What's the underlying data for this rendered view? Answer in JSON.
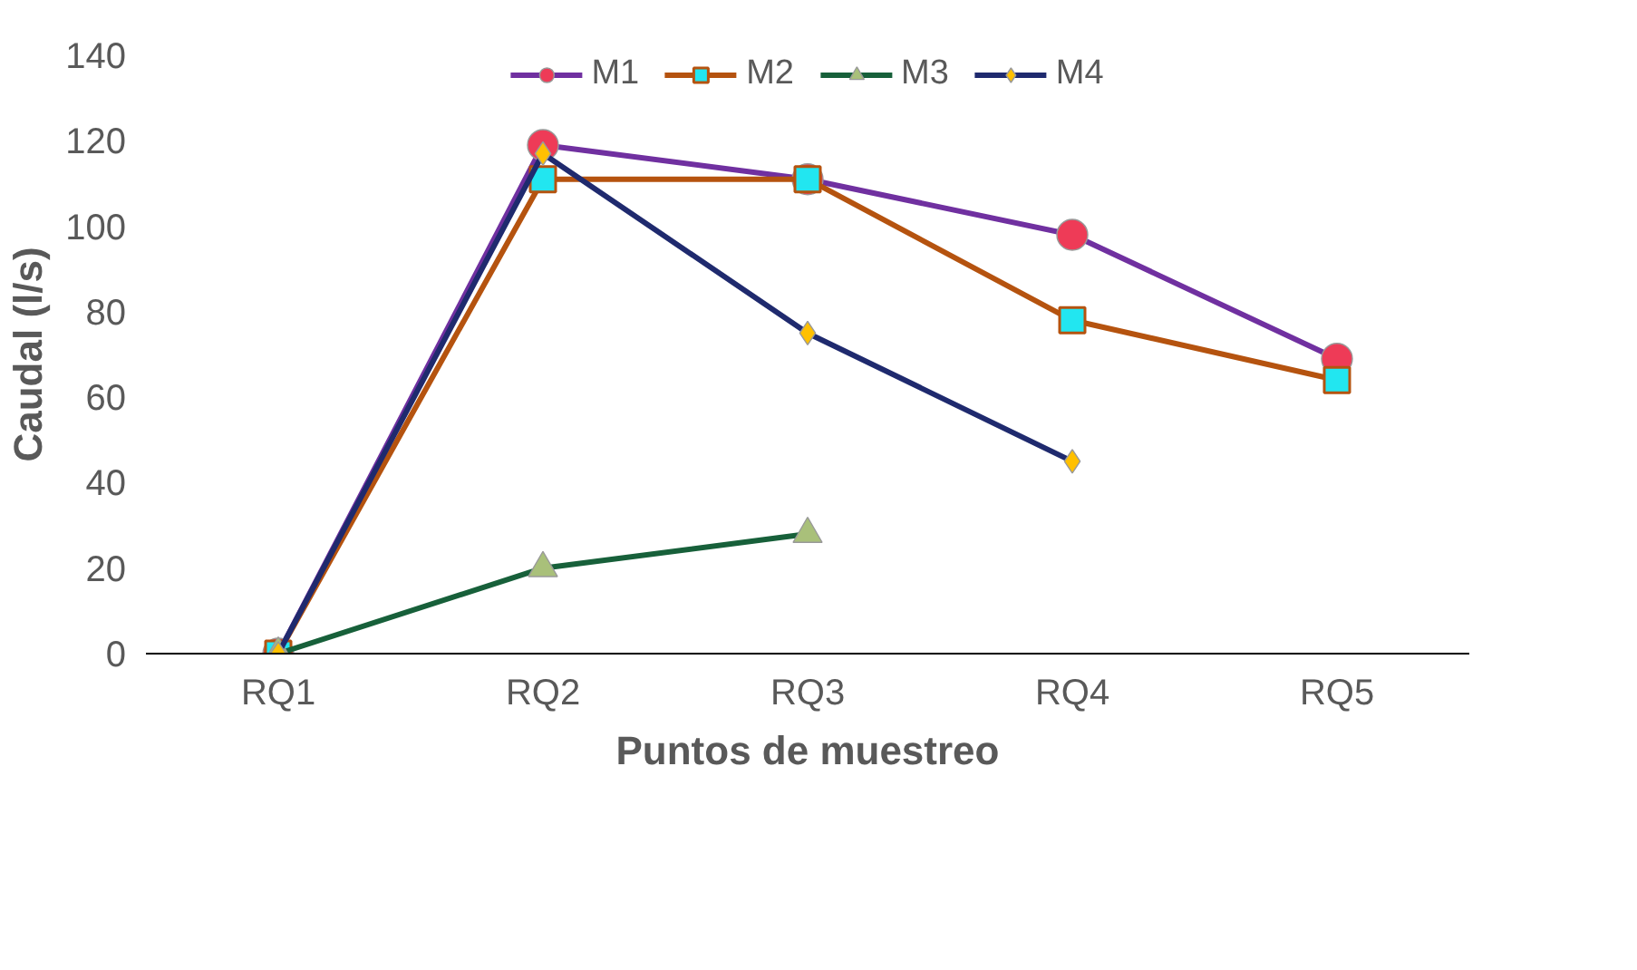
{
  "chart_data": {
    "type": "line",
    "xlabel": "Puntos de muestreo",
    "ylabel": "Caudal (l/s)",
    "categories": [
      "RQ1",
      "RQ2",
      "RQ3",
      "RQ4",
      "RQ5"
    ],
    "ylim": [
      0,
      140
    ],
    "yticks": [
      0,
      20,
      40,
      60,
      80,
      100,
      120,
      140
    ],
    "grid": false,
    "legend": "top",
    "series": [
      {
        "name": "M1",
        "color": "#7030a0",
        "marker": "circle",
        "colors": [
          "#ee3b57",
          "#ee3b57",
          "#ee3b57",
          "#ee3b57",
          "#ee3b57"
        ],
        "values": [
          0,
          119,
          111,
          98,
          69
        ]
      },
      {
        "name": "M2",
        "color": "#b5530f",
        "marker": "square",
        "colors": [
          "#22e6f0",
          "#22e6f0",
          "#22e6f0",
          "#22e6f0",
          "#22e6f0"
        ],
        "values": [
          0,
          111,
          111,
          78,
          64
        ]
      },
      {
        "name": "M3",
        "color": "#17603a",
        "marker": "triangle",
        "colors": [
          "#a9c07a",
          "#a9c07a",
          "#a9c07a",
          null,
          null
        ],
        "values": [
          0,
          20,
          28,
          null,
          null
        ]
      },
      {
        "name": "M4",
        "color": "#1f2a6e",
        "marker": "diamond",
        "colors": [
          "#ffc000",
          "#ffc000",
          "#ffc000",
          "#ffc000",
          null
        ],
        "values": [
          0,
          117,
          75,
          45,
          null
        ]
      }
    ]
  }
}
